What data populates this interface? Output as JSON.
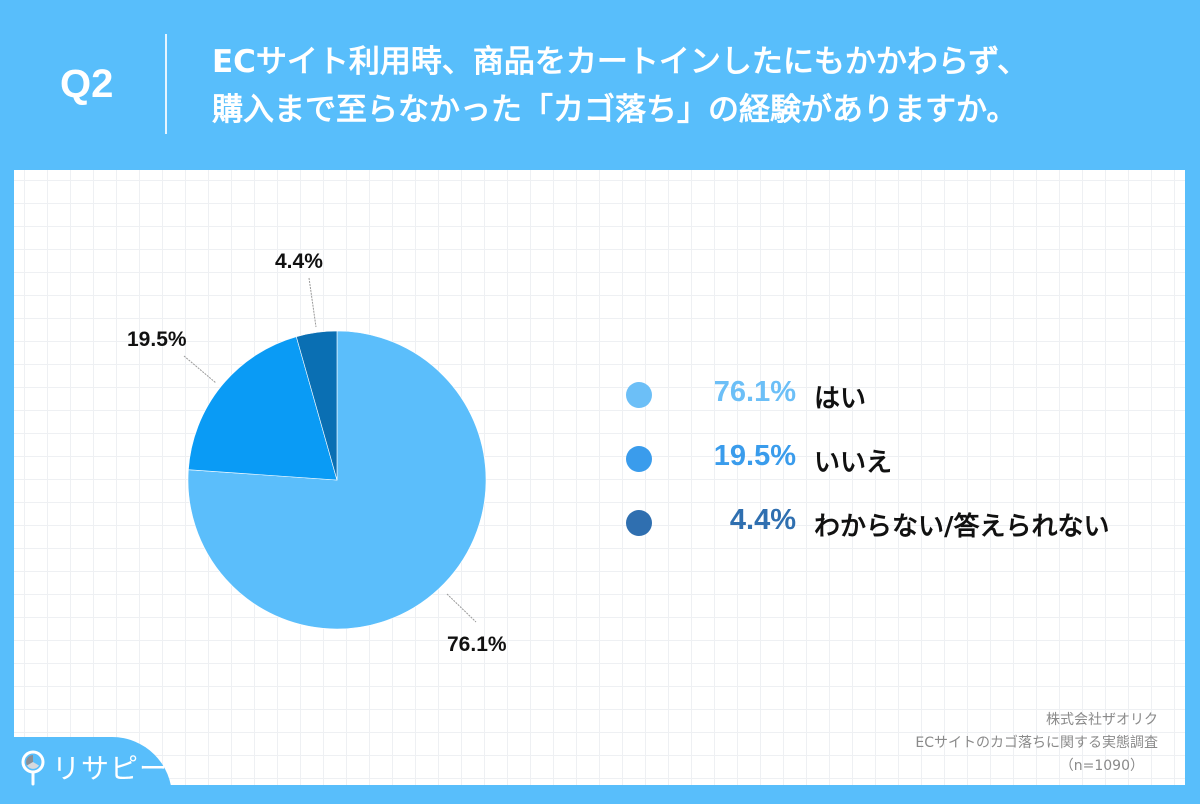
{
  "header": {
    "question_number": "Q2",
    "title_line1": "ECサイト利用時、商品をカートインしたにもかかわらず、",
    "title_line2": "購入まで至らなかった「カゴ落ち」の経験がありますか。"
  },
  "colors": {
    "background": "#58BEFB",
    "panel": "#FFFFFF",
    "slice_yes": "#5BBEFB",
    "slice_no": "#0A9BF5",
    "slice_unknown": "#0A6FB3",
    "legend_yes": "#6CBFF7",
    "legend_no": "#3A9CEC",
    "legend_unknown": "#2F6FB0"
  },
  "chart_data": {
    "type": "pie",
    "title": "ECサイト利用時、商品をカートインしたにもかかわらず、購入まで至らなかった「カゴ落ち」の経験がありますか。",
    "categories": [
      "はい",
      "いいえ",
      "わからない/答えられない"
    ],
    "values": [
      76.1,
      19.5,
      4.4
    ],
    "unit": "%",
    "start_angle": "12 o'clock",
    "direction": "clockwise",
    "legend_position": "right",
    "data_labels": [
      "76.1%",
      "19.5%",
      "4.4%"
    ],
    "sample_size": "n=1090"
  },
  "pie_labels": {
    "yes": "76.1%",
    "no": "19.5%",
    "unknown": "4.4%"
  },
  "legend": [
    {
      "pct": "76.1%",
      "label": "はい"
    },
    {
      "pct": "19.5%",
      "label": "いいえ"
    },
    {
      "pct": "4.4%",
      "label": "わからない/答えられない"
    }
  ],
  "source": {
    "company": "株式会社ザオリク",
    "survey": "ECサイトのカゴ落ちに関する実態調査",
    "sample": "（n=1090）"
  },
  "logo": {
    "text": "リサピー",
    "icon": "magnifier-pie-icon"
  }
}
